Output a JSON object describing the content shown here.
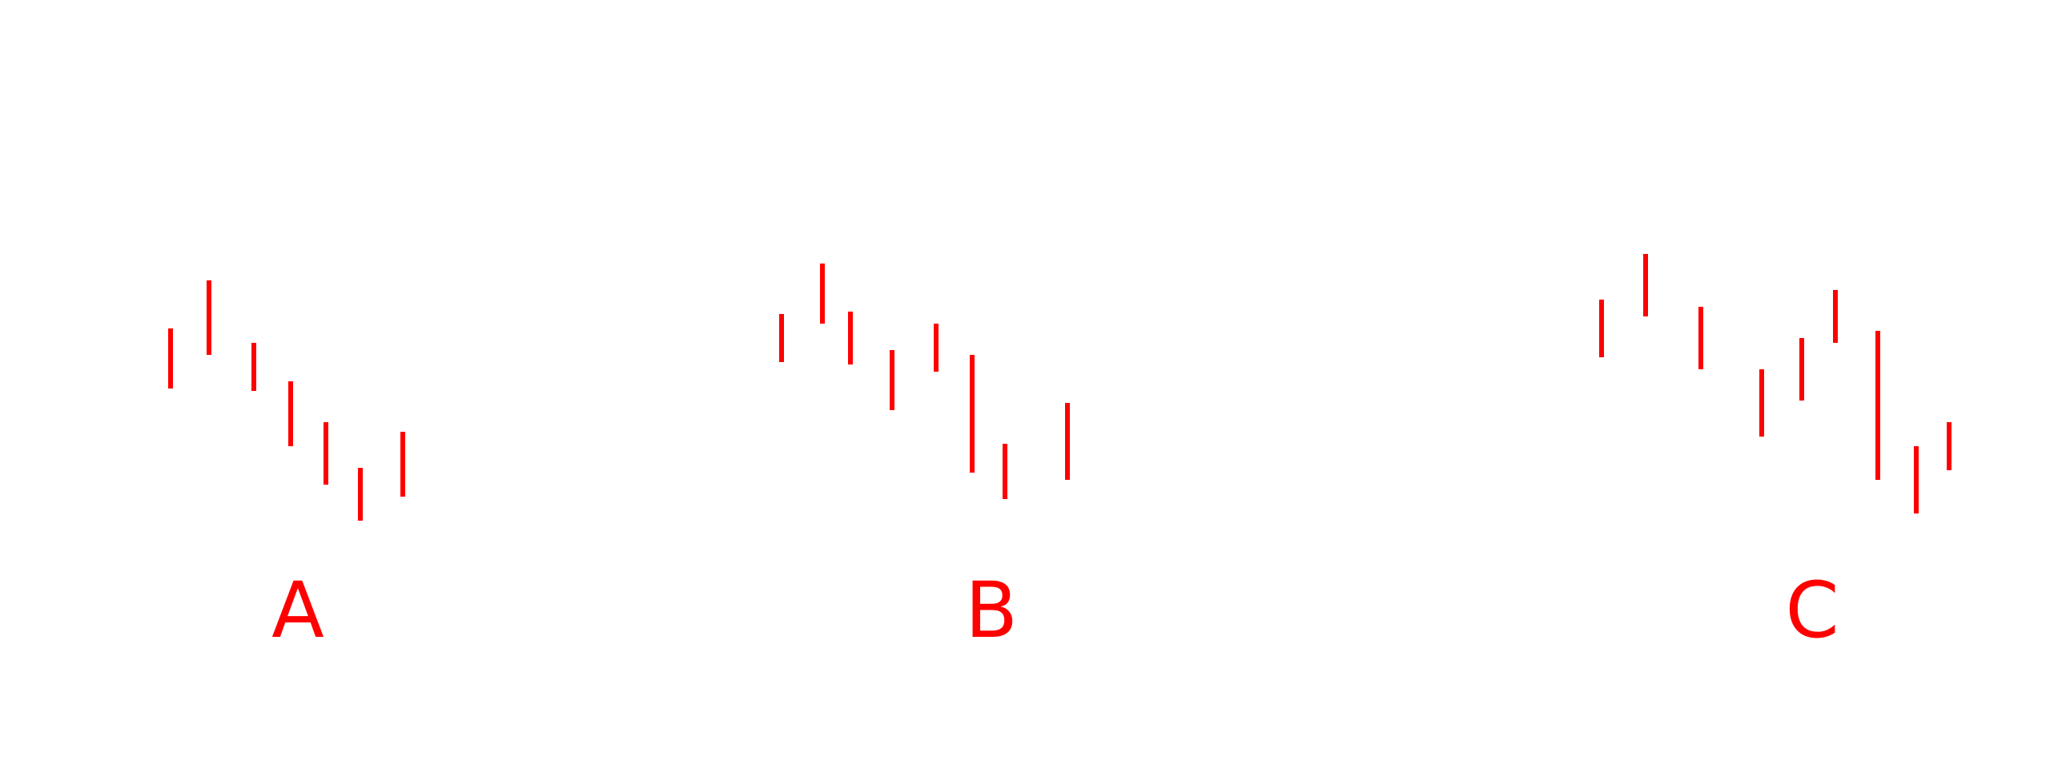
{
  "chart_data": [
    {
      "type": "bar",
      "label": "A",
      "color": "#ff0000",
      "series": [
        {
          "high": 70,
          "low": 45
        },
        {
          "high": 90,
          "low": 59
        },
        {
          "high": 64,
          "low": 44
        },
        {
          "high": 48,
          "low": 21
        },
        {
          "high": 31,
          "low": 5
        },
        {
          "high": 12,
          "low": -10
        },
        {
          "high": 27,
          "low": 0
        }
      ]
    },
    {
      "type": "bar",
      "label": "B",
      "color": "#ff0000",
      "series": [
        {
          "high": 76,
          "low": 56
        },
        {
          "high": 97,
          "low": 72
        },
        {
          "high": 77,
          "low": 55
        },
        {
          "high": 61,
          "low": 36
        },
        {
          "high": 72,
          "low": 52
        },
        {
          "high": 59,
          "low": 10
        },
        {
          "high": 22,
          "low": -1
        },
        {
          "high": 39,
          "low": 7
        }
      ]
    },
    {
      "type": "bar",
      "label": "C",
      "color": "#ff0000",
      "series": [
        {
          "high": 82,
          "low": 58
        },
        {
          "high": 101,
          "low": 75
        },
        {
          "high": 79,
          "low": 53
        },
        {
          "high": 53,
          "low": 25
        },
        {
          "high": 66,
          "low": 40
        },
        {
          "high": 86,
          "low": 64
        },
        {
          "high": 69,
          "low": 7
        },
        {
          "high": 21,
          "low": -7
        },
        {
          "high": 31,
          "low": 11
        }
      ]
    }
  ]
}
